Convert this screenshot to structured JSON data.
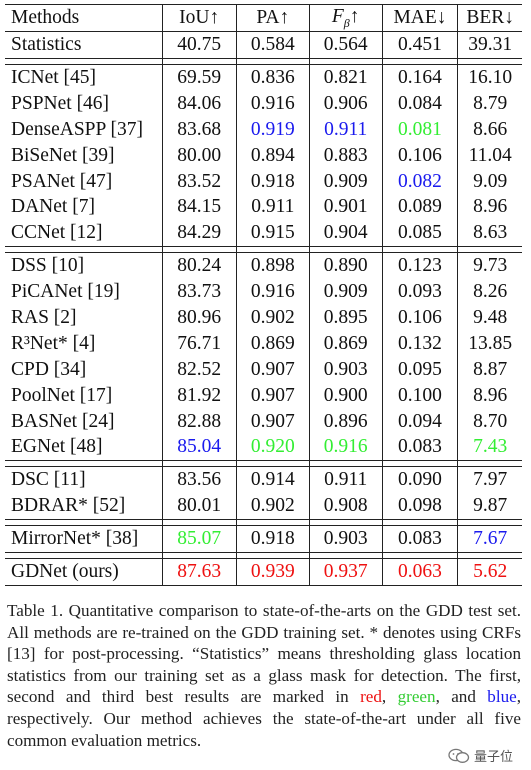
{
  "table": {
    "headers": [
      "Methods",
      "IoU↑",
      "PA↑",
      "F_β↑",
      "MAE↓",
      "BER↓"
    ],
    "groups": [
      [
        {
          "method": "Statistics",
          "values": [
            "40.75",
            "0.584",
            "0.564",
            "0.451",
            "39.31"
          ],
          "styles": [
            "",
            "",
            "",
            "",
            ""
          ]
        }
      ],
      [
        {
          "method": "ICNet [45]",
          "values": [
            "69.59",
            "0.836",
            "0.821",
            "0.164",
            "16.10"
          ],
          "styles": [
            "",
            "",
            "",
            "",
            ""
          ]
        },
        {
          "method": "PSPNet [46]",
          "values": [
            "84.06",
            "0.916",
            "0.906",
            "0.084",
            "8.79"
          ],
          "styles": [
            "",
            "",
            "",
            "",
            ""
          ]
        },
        {
          "method": "DenseASPP [37]",
          "values": [
            "83.68",
            "0.919",
            "0.911",
            "0.081",
            "8.66"
          ],
          "styles": [
            "",
            "blue",
            "blue",
            "green",
            ""
          ]
        },
        {
          "method": "BiSeNet [39]",
          "values": [
            "80.00",
            "0.894",
            "0.883",
            "0.106",
            "11.04"
          ],
          "styles": [
            "",
            "",
            "",
            "",
            ""
          ]
        },
        {
          "method": "PSANet [47]",
          "values": [
            "83.52",
            "0.918",
            "0.909",
            "0.082",
            "9.09"
          ],
          "styles": [
            "",
            "",
            "",
            "blue",
            ""
          ]
        },
        {
          "method": "DANet [7]",
          "values": [
            "84.15",
            "0.911",
            "0.901",
            "0.089",
            "8.96"
          ],
          "styles": [
            "",
            "",
            "",
            "",
            ""
          ]
        },
        {
          "method": "CCNet [12]",
          "values": [
            "84.29",
            "0.915",
            "0.904",
            "0.085",
            "8.63"
          ],
          "styles": [
            "",
            "",
            "",
            "",
            ""
          ]
        }
      ],
      [
        {
          "method": "DSS [10]",
          "values": [
            "80.24",
            "0.898",
            "0.890",
            "0.123",
            "9.73"
          ],
          "styles": [
            "",
            "",
            "",
            "",
            ""
          ]
        },
        {
          "method": "PiCANet [19]",
          "values": [
            "83.73",
            "0.916",
            "0.909",
            "0.093",
            "8.26"
          ],
          "styles": [
            "",
            "",
            "",
            "",
            ""
          ]
        },
        {
          "method": "RAS [2]",
          "values": [
            "80.96",
            "0.902",
            "0.895",
            "0.106",
            "9.48"
          ],
          "styles": [
            "",
            "",
            "",
            "",
            ""
          ]
        },
        {
          "method": "R³Net* [4]",
          "values": [
            "76.71",
            "0.869",
            "0.869",
            "0.132",
            "13.85"
          ],
          "styles": [
            "",
            "",
            "",
            "",
            ""
          ]
        },
        {
          "method": "CPD [34]",
          "values": [
            "82.52",
            "0.907",
            "0.903",
            "0.095",
            "8.87"
          ],
          "styles": [
            "",
            "",
            "",
            "",
            ""
          ]
        },
        {
          "method": "PoolNet [17]",
          "values": [
            "81.92",
            "0.907",
            "0.900",
            "0.100",
            "8.96"
          ],
          "styles": [
            "",
            "",
            "",
            "",
            ""
          ]
        },
        {
          "method": "BASNet [24]",
          "values": [
            "82.88",
            "0.907",
            "0.896",
            "0.094",
            "8.70"
          ],
          "styles": [
            "",
            "",
            "",
            "",
            ""
          ]
        },
        {
          "method": "EGNet [48]",
          "values": [
            "85.04",
            "0.920",
            "0.916",
            "0.083",
            "7.43"
          ],
          "styles": [
            "blue",
            "green",
            "green",
            "",
            "green"
          ]
        }
      ],
      [
        {
          "method": "DSC [11]",
          "values": [
            "83.56",
            "0.914",
            "0.911",
            "0.090",
            "7.97"
          ],
          "styles": [
            "",
            "",
            "",
            "",
            ""
          ]
        },
        {
          "method": "BDRAR* [52]",
          "values": [
            "80.01",
            "0.902",
            "0.908",
            "0.098",
            "9.87"
          ],
          "styles": [
            "",
            "",
            "",
            "",
            ""
          ]
        }
      ],
      [
        {
          "method": "MirrorNet* [38]",
          "values": [
            "85.07",
            "0.918",
            "0.903",
            "0.083",
            "7.67"
          ],
          "styles": [
            "green",
            "",
            "",
            "",
            "blue"
          ]
        }
      ],
      [
        {
          "method": "GDNet (ours)",
          "values": [
            "87.63",
            "0.939",
            "0.937",
            "0.063",
            "5.62"
          ],
          "styles": [
            "red",
            "red",
            "red",
            "red",
            "red"
          ]
        }
      ]
    ]
  },
  "caption": {
    "part1": "Table 1. Quantitative comparison to state-of-the-arts on the GDD test set. All methods are re-trained on the GDD training set. * denotes using CRFs [13] for post-processing. “Statistics” means thresholding glass location statistics from our training set as a glass mask for detection. The first, second and third best results are marked in ",
    "red": "red",
    "sep1": ", ",
    "green": "green",
    "sep2": ", and ",
    "blue": "blue",
    "part2": ", respectively. Our method achieves the state-of-the-art under all five common evaluation metrics."
  },
  "watermark": {
    "text": "量子位",
    "icon": "wechat-icon"
  },
  "colors": {
    "red": "#ee1111",
    "green": "#33ee33",
    "blue": "#1a1aee"
  }
}
